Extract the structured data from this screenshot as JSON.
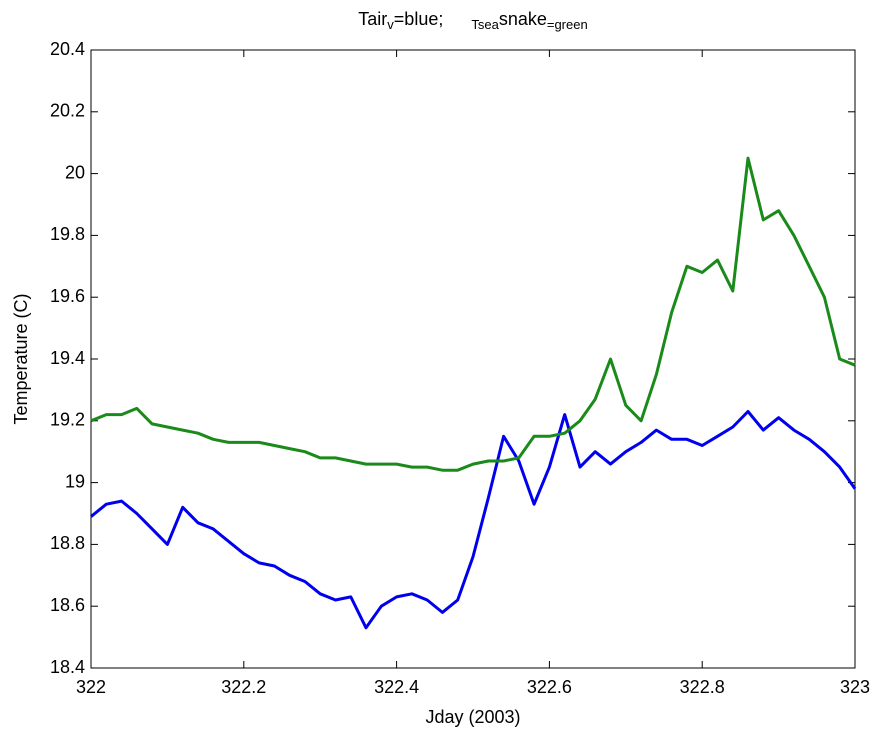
{
  "chart_data": {
    "type": "line",
    "title_parts": [
      "Tair",
      "v",
      "=blue;",
      "Tsea",
      "snake",
      "=green"
    ],
    "xlabel": "Jday (2003)",
    "ylabel": "Temperature (C)",
    "x": [
      322,
      322.02,
      322.04,
      322.06,
      322.08,
      322.1,
      322.12,
      322.14,
      322.16,
      322.18,
      322.2,
      322.22,
      322.24,
      322.26,
      322.28,
      322.3,
      322.32,
      322.34,
      322.36,
      322.38,
      322.4,
      322.42,
      322.44,
      322.46,
      322.48,
      322.5,
      322.52,
      322.54,
      322.56,
      322.58,
      322.6,
      322.62,
      322.64,
      322.66,
      322.68,
      322.7,
      322.72,
      322.74,
      322.76,
      322.78,
      322.8,
      322.82,
      322.84,
      322.86,
      322.88,
      322.9,
      322.92,
      322.94,
      322.96,
      322.98,
      323
    ],
    "series": [
      {
        "name": "Tair",
        "color": "#0000ee",
        "values": [
          18.89,
          18.93,
          18.94,
          18.9,
          18.85,
          18.8,
          18.92,
          18.87,
          18.85,
          18.81,
          18.77,
          18.74,
          18.73,
          18.7,
          18.68,
          18.64,
          18.62,
          18.63,
          18.53,
          18.6,
          18.63,
          18.64,
          18.62,
          18.58,
          18.62,
          18.76,
          18.95,
          19.15,
          19.07,
          18.93,
          19.05,
          19.22,
          19.05,
          19.1,
          19.06,
          19.1,
          19.13,
          19.17,
          19.14,
          19.14,
          19.12,
          19.15,
          19.18,
          19.23,
          19.17,
          19.21,
          19.17,
          19.14,
          19.1,
          19.05,
          18.98
        ]
      },
      {
        "name": "Tsea",
        "color": "#1a8a1a",
        "values": [
          19.2,
          19.22,
          19.22,
          19.24,
          19.19,
          19.18,
          19.17,
          19.16,
          19.14,
          19.13,
          19.13,
          19.13,
          19.12,
          19.11,
          19.1,
          19.08,
          19.08,
          19.07,
          19.06,
          19.06,
          19.06,
          19.05,
          19.05,
          19.04,
          19.04,
          19.06,
          19.07,
          19.07,
          19.08,
          19.15,
          19.15,
          19.16,
          19.2,
          19.27,
          19.4,
          19.25,
          19.2,
          19.35,
          19.55,
          19.7,
          19.68,
          19.72,
          19.62,
          20.05,
          19.85,
          19.88,
          19.8,
          19.7,
          19.6,
          19.4,
          19.38
        ]
      }
    ],
    "xlim": [
      322,
      323
    ],
    "xticks": [
      322,
      322.2,
      322.4,
      322.6,
      322.8,
      323
    ],
    "ylim": [
      18.4,
      20.4
    ],
    "yticks": [
      18.4,
      18.6,
      18.8,
      19,
      19.2,
      19.4,
      19.6,
      19.8,
      20,
      20.2,
      20.4
    ]
  }
}
